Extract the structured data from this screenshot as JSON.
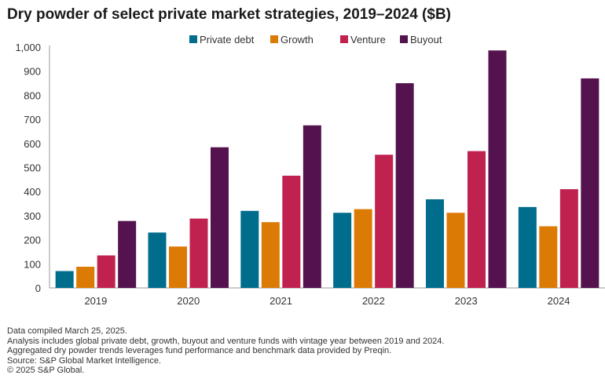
{
  "title": "Dry powder of select private market strategies, 2019–2024 ($B)",
  "chart_data": {
    "type": "bar",
    "categories": [
      "2019",
      "2020",
      "2021",
      "2022",
      "2023",
      "2024"
    ],
    "series": [
      {
        "name": "Private debt",
        "color": "#006d8c",
        "values": [
          70,
          230,
          320,
          312,
          368,
          336
        ]
      },
      {
        "name": "Growth",
        "color": "#dc7a06",
        "values": [
          88,
          172,
          273,
          327,
          312,
          256
        ]
      },
      {
        "name": "Venture",
        "color": "#c0224f",
        "values": [
          135,
          288,
          466,
          553,
          568,
          410
        ]
      },
      {
        "name": "Buyout",
        "color": "#54134f",
        "values": [
          278,
          584,
          675,
          850,
          986,
          870
        ]
      }
    ],
    "ylim": [
      0,
      1000
    ],
    "yticks": [
      0,
      100,
      200,
      300,
      400,
      500,
      600,
      700,
      800,
      900,
      1000
    ],
    "ytick_labels": [
      "0",
      "100",
      "200",
      "300",
      "400",
      "500",
      "600",
      "700",
      "800",
      "900",
      "1,000"
    ],
    "grid": false,
    "legend": "top-center"
  },
  "footnotes": [
    "Data compiled March 25, 2025.",
    "Analysis includes global private debt, growth, buyout and venture funds with vintage year between 2019 and 2024.",
    "Aggregated dry powder trends leverages fund performance and benchmark data provided by Preqin.",
    "Source: S&P Global Market Intelligence.",
    "© 2025 S&P Global."
  ]
}
